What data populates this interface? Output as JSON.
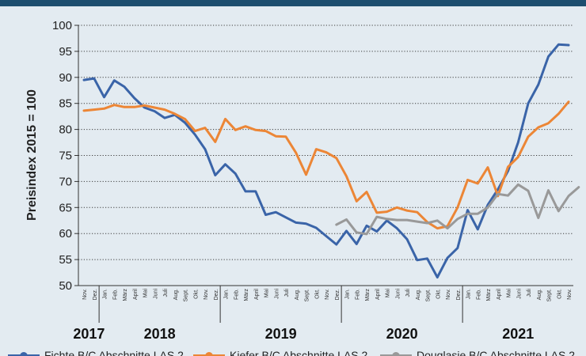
{
  "chart_data": {
    "type": "line",
    "ylabel": "Preisindex 2015 = 100",
    "ylim": [
      50,
      100
    ],
    "yticks": [
      50,
      55,
      60,
      65,
      70,
      75,
      80,
      85,
      90,
      95,
      100
    ],
    "grid": "horizontal dotted",
    "months": [
      "Nov.",
      "Dez.",
      "Jan.",
      "Feb.",
      "März",
      "April",
      "Mai",
      "Juni",
      "Juli",
      "Aug.",
      "Sept.",
      "Okt.",
      "Nov.",
      "Dez.",
      "Jan.",
      "Feb.",
      "März",
      "April",
      "Mai",
      "Juni",
      "Juli",
      "Aug.",
      "Sept.",
      "Okt.",
      "Nov.",
      "Dez.",
      "Jan.",
      "Feb.",
      "März",
      "April",
      "Mai",
      "Juni",
      "Juli",
      "Aug.",
      "Sept.",
      "Okt.",
      "Nov.",
      "Dez.",
      "Jan.",
      "Feb.",
      "März",
      "April",
      "Mai",
      "Juni",
      "Juli",
      "Aug.",
      "Sept.",
      "Okt.",
      "Nov."
    ],
    "years": [
      {
        "label": "2017",
        "start": 0,
        "end": 1
      },
      {
        "label": "2018",
        "start": 2,
        "end": 13
      },
      {
        "label": "2019",
        "start": 14,
        "end": 25
      },
      {
        "label": "2020",
        "start": 26,
        "end": 37
      },
      {
        "label": "2021",
        "start": 38,
        "end": 48
      }
    ],
    "series": [
      {
        "name": "Fichte B/C Abschnitte LAS 2",
        "color": "#3a64a8",
        "start": 0,
        "values": [
          89.5,
          89.8,
          86.2,
          89.4,
          88.2,
          86.0,
          84.2,
          83.5,
          82.2,
          82.8,
          81.3,
          79.0,
          76.2,
          71.2,
          73.3,
          71.5,
          68.1,
          68.1,
          63.6,
          64.1,
          63.1,
          62.1,
          61.9,
          61.1,
          59.5,
          57.9,
          60.5,
          58.0,
          61.5,
          60.4,
          62.5,
          61.0,
          58.9,
          54.9,
          55.2,
          51.6,
          55.3,
          57.2,
          64.5,
          60.8,
          65.5,
          68.5,
          72.0,
          77.5,
          85.0,
          88.6,
          94.0,
          96.3,
          96.2
        ]
      },
      {
        "name": "Kiefer B/C Abschnitte LAS 2",
        "color": "#ec8636",
        "start": 0,
        "values": [
          83.6,
          83.8,
          84.0,
          84.7,
          84.3,
          84.3,
          84.6,
          84.2,
          83.8,
          83.0,
          82.0,
          79.7,
          80.3,
          77.6,
          82.0,
          79.9,
          80.6,
          79.9,
          79.7,
          78.7,
          78.6,
          75.5,
          71.3,
          76.2,
          75.6,
          74.5,
          71.0,
          66.2,
          68.0,
          64.0,
          64.2,
          65.0,
          64.4,
          64.1,
          62.2,
          61.0,
          61.4,
          65.0,
          70.3,
          69.6,
          72.7,
          67.2,
          72.8,
          74.7,
          78.6,
          80.4,
          81.2,
          83.0,
          85.3
        ]
      },
      {
        "name": "Douglasie B/C Abschnitte LAS 2",
        "color": "#999999",
        "start": 25,
        "values": [
          61.7,
          62.7,
          60.2,
          59.9,
          63.2,
          62.8,
          62.6,
          62.6,
          62.3,
          62.0,
          62.5,
          61.0,
          62.8,
          63.8,
          63.8,
          65.0,
          67.6,
          67.3,
          69.4,
          68.2,
          63.0,
          68.3,
          64.3,
          67.2,
          68.9
        ]
      }
    ]
  }
}
